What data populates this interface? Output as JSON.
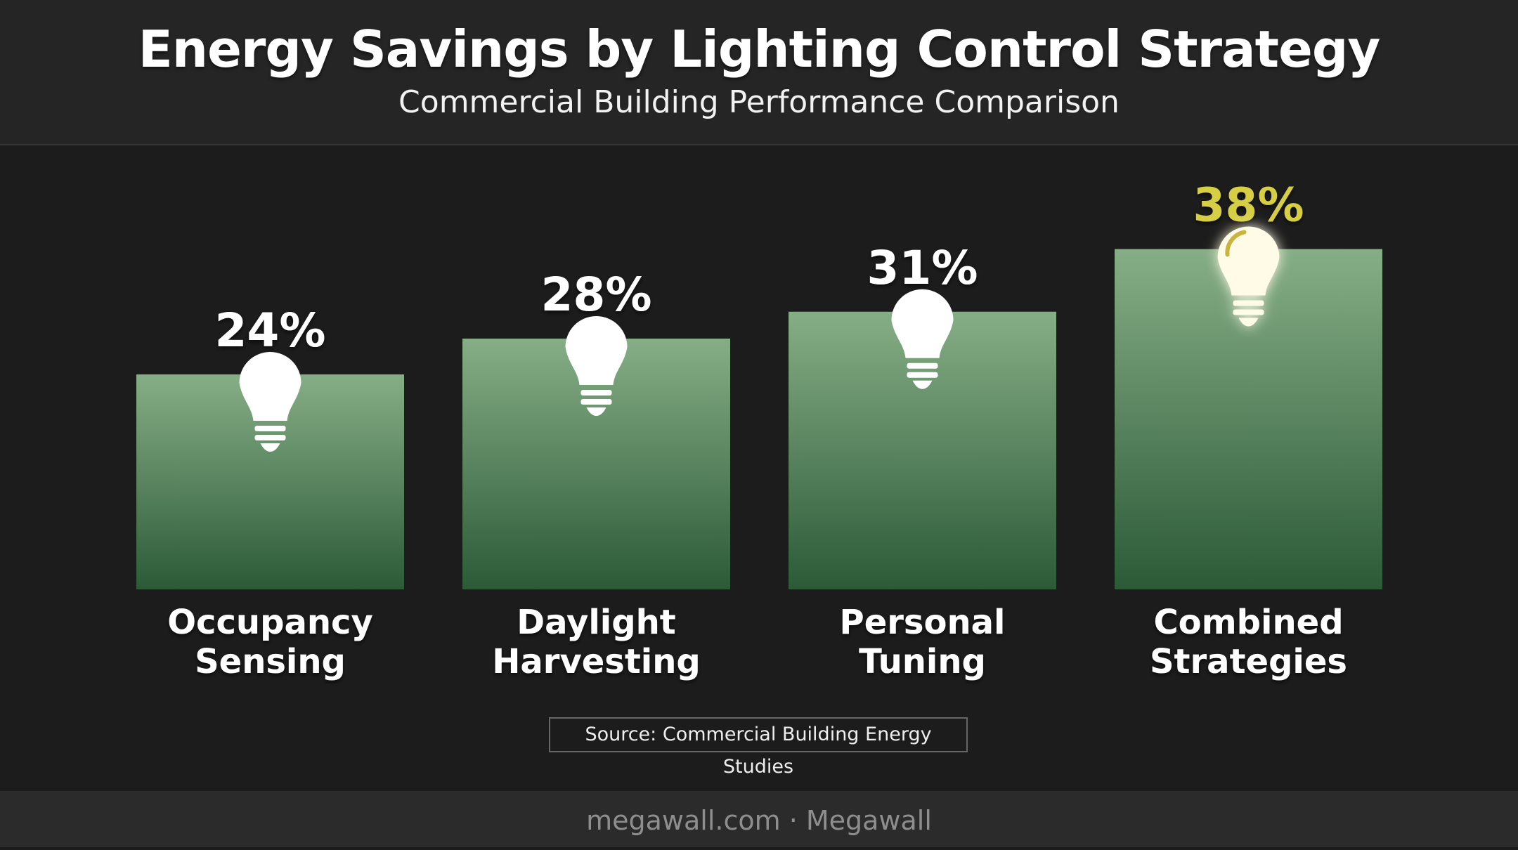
{
  "header": {
    "title": "Energy Savings by Lighting Control Strategy",
    "subtitle": "Commercial Building Performance Comparison"
  },
  "chart_data": {
    "type": "bar",
    "categories": [
      "Occupancy Sensing",
      "Daylight Harvesting",
      "Personal Tuning",
      "Combined Strategies"
    ],
    "category_lines": [
      [
        "Occupancy",
        "Sensing"
      ],
      [
        "Daylight",
        "Harvesting"
      ],
      [
        "Personal",
        "Tuning"
      ],
      [
        "Combined",
        "Strategies"
      ]
    ],
    "values": [
      24,
      28,
      31,
      38
    ],
    "data_labels": [
      "24%",
      "28%",
      "31%",
      "38%"
    ],
    "highlight_index": 3,
    "ylim": [
      0,
      40
    ],
    "grid": false,
    "legend": "none",
    "bar_icon": "lightbulb-icon"
  },
  "source": "Source: Commercial Building Energy Studies",
  "footer": "megawall.com · Megawall",
  "colors": {
    "background": "#1c1c1c",
    "header_bg": "#252525",
    "bar_top": "#86ae86",
    "bar_bottom": "#2c5a37",
    "label": "#ffffff",
    "highlight": "#d6cf45",
    "footer_text": "#8e8e8e"
  }
}
